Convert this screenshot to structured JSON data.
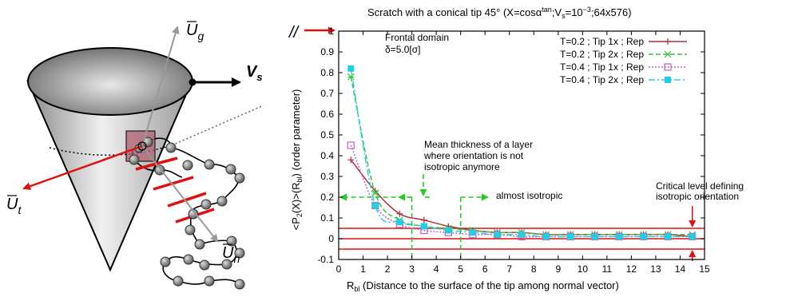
{
  "diagram": {
    "velocity_label": "V",
    "velocity_sub": "s",
    "vec_g": "U",
    "vec_g_sub": "g",
    "vec_t": "U",
    "vec_t_sub": "t",
    "vec_n": "U",
    "vec_n_sub": "n",
    "colors": {
      "cone_fill": "#c8c8c8",
      "arrow_red": "#e01010",
      "bead": "#777777"
    }
  },
  "chart_data": {
    "type": "line",
    "title_pre": "Scratch with a conical tip 45° (X=cosα",
    "title_sup1": "tan",
    "title_mid": ";V",
    "title_sub": "s",
    "title_mid2": "=10",
    "title_sup2": "−3",
    "title_post": ";64x576)",
    "ylabel_pre": "<P",
    "ylabel_sub1": "2",
    "ylabel_mid": "(X)>(R",
    "ylabel_sub2": "bl",
    "ylabel_post": ") (order parameter)",
    "xlabel_pre": "R",
    "xlabel_sub": "bl",
    "xlabel_post": " (Distance to the surface of the tip among normal vector)",
    "xlim": [
      0,
      15
    ],
    "ylim": [
      -0.1,
      1.0
    ],
    "x_ticks": [
      0,
      1,
      2,
      3,
      4,
      5,
      6,
      7,
      8,
      9,
      10,
      11,
      12,
      13,
      14,
      15
    ],
    "y_ticks": [
      -0.1,
      0,
      0.1,
      0.2,
      0.3,
      0.4,
      0.5,
      0.6,
      0.7,
      0.8,
      0.9,
      1
    ],
    "y_tick_labels": [
      "-0.1",
      "0",
      "0.1",
      "0.2",
      "0.3",
      "0.4",
      "0.5",
      "0.6",
      "0.7",
      "0.8",
      "0.9",
      "1"
    ],
    "legend_position": "top-right",
    "x": [
      0.5,
      1.5,
      2.5,
      3.5,
      4.5,
      5.5,
      6.5,
      7.5,
      8.5,
      9.5,
      10.5,
      11.5,
      12.5,
      13.5,
      14.5
    ],
    "series": [
      {
        "name": "T=0.2 ; Tip 1x ; Rep",
        "color": "#b03040",
        "marker": "plus",
        "values": [
          0.38,
          0.23,
          0.12,
          0.09,
          0.06,
          0.04,
          0.03,
          0.03,
          0.02,
          0.02,
          0.02,
          0.02,
          0.02,
          0.02,
          0.01
        ]
      },
      {
        "name": "T=0.2 ; Tip 2x ; Rep",
        "color": "#40c040",
        "marker": "cross",
        "values": [
          0.78,
          0.22,
          0.09,
          0.06,
          0.05,
          0.04,
          0.03,
          0.03,
          0.02,
          0.02,
          0.02,
          0.02,
          0.02,
          0.02,
          0.02
        ]
      },
      {
        "name": "T=0.4 ; Tip 1x ; Rep",
        "color": "#c060c0",
        "marker": "square-open",
        "values": [
          0.45,
          0.16,
          0.07,
          0.04,
          0.03,
          0.02,
          0.02,
          0.01,
          0.01,
          0.01,
          0.01,
          0.01,
          0.01,
          0.01,
          0.01
        ]
      },
      {
        "name": "T=0.4 ; Tip 2x ; Rep",
        "color": "#20d0e0",
        "marker": "square-filled",
        "values": [
          0.82,
          0.16,
          0.08,
          0.06,
          0.04,
          0.03,
          0.02,
          0.02,
          0.01,
          0.01,
          0.01,
          0.01,
          0.01,
          0.01,
          0.01
        ]
      }
    ],
    "reference_lines_y": [
      0.05,
      0.0,
      -0.05
    ],
    "annotations": {
      "frontal_domain": "Frontal domain",
      "delta": "δ=5.0[σ]",
      "mean_line1": "Mean thickness of a layer",
      "mean_line2": "where orientation is not",
      "mean_line3": "isotropic anymore",
      "almost_isotropic": "almost isotropic",
      "critical_line1": "Critical level defining",
      "critical_line2": "isotropic orientation",
      "break_mark": "//"
    },
    "guides": {
      "horizontal_y": 0.2,
      "vertical_x1": 3,
      "vertical_x2": 5
    }
  }
}
